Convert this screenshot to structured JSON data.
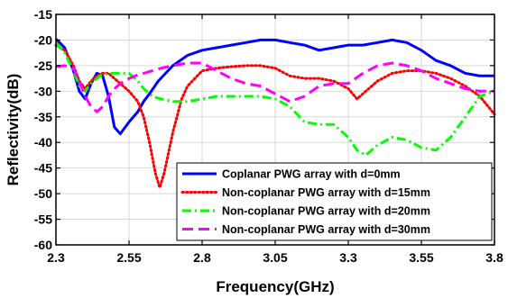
{
  "chart_data": {
    "type": "line",
    "title": "",
    "xlabel": "Frequency(GHz)",
    "ylabel": "Reflectivity(dB)",
    "xlim": [
      2.3,
      3.8
    ],
    "ylim": [
      -60,
      -15
    ],
    "xticks": [
      2.3,
      2.55,
      2.8,
      3.05,
      3.3,
      3.55,
      3.8
    ],
    "xtick_labels": [
      "2.3",
      "2.55",
      "2.8",
      "3.05",
      "3.3",
      "3.55",
      "3.8"
    ],
    "yticks": [
      -60,
      -55,
      -50,
      -45,
      -40,
      -35,
      -30,
      -25,
      -20,
      -15
    ],
    "ytick_labels": [
      "-60",
      "-55",
      "-50",
      "-45",
      "-40",
      "-35",
      "-30",
      "-25",
      "-20",
      "-15"
    ],
    "grid": true,
    "legend_position": "lower-right",
    "series": [
      {
        "name": "Coplanar PWG array with d=0mm",
        "color": "#0000ff",
        "style": "solid",
        "x": [
          2.3,
          2.33,
          2.36,
          2.38,
          2.4,
          2.42,
          2.44,
          2.46,
          2.48,
          2.5,
          2.52,
          2.55,
          2.58,
          2.6,
          2.62,
          2.65,
          2.7,
          2.75,
          2.8,
          2.85,
          2.9,
          2.95,
          3.0,
          3.05,
          3.1,
          3.15,
          3.2,
          3.25,
          3.3,
          3.35,
          3.4,
          3.45,
          3.5,
          3.55,
          3.6,
          3.65,
          3.7,
          3.75,
          3.8
        ],
        "y": [
          -19.8,
          -21.5,
          -26,
          -30,
          -31.5,
          -28.5,
          -26.5,
          -27,
          -31,
          -37,
          -38.3,
          -36,
          -34,
          -32,
          -30.5,
          -28,
          -25,
          -23,
          -22,
          -21.5,
          -21,
          -20.5,
          -20,
          -20,
          -20.5,
          -21,
          -22,
          -21.5,
          -21,
          -21,
          -20.5,
          -20,
          -20.5,
          -22,
          -24,
          -25,
          -26.5,
          -27,
          -27
        ]
      },
      {
        "name": "Non-coplanar PWG array with d=15mm",
        "color": "#ff0000",
        "style": "dotted",
        "x": [
          2.3,
          2.33,
          2.36,
          2.38,
          2.4,
          2.42,
          2.44,
          2.46,
          2.48,
          2.5,
          2.52,
          2.55,
          2.58,
          2.6,
          2.62,
          2.64,
          2.655,
          2.67,
          2.7,
          2.73,
          2.75,
          2.8,
          2.85,
          2.9,
          2.95,
          3.0,
          3.05,
          3.1,
          3.15,
          3.2,
          3.25,
          3.3,
          3.33,
          3.36,
          3.4,
          3.45,
          3.5,
          3.55,
          3.6,
          3.65,
          3.7,
          3.75,
          3.8
        ],
        "y": [
          -21,
          -22,
          -25,
          -28,
          -29.5,
          -28,
          -27,
          -26.5,
          -26.5,
          -27.5,
          -28.5,
          -30,
          -32,
          -35,
          -40,
          -46,
          -48.8,
          -46,
          -38,
          -31.5,
          -29,
          -26,
          -25.5,
          -25.2,
          -25,
          -25,
          -25.5,
          -27,
          -27.5,
          -27.5,
          -28,
          -29.5,
          -31.5,
          -30,
          -28,
          -26.5,
          -26,
          -26,
          -26.5,
          -27.5,
          -29,
          -31,
          -34.5
        ]
      },
      {
        "name": "Non-coplanar PWG array with d=20mm",
        "color": "#00ff00",
        "style": "dashdot",
        "x": [
          2.3,
          2.33,
          2.36,
          2.38,
          2.4,
          2.42,
          2.45,
          2.48,
          2.5,
          2.52,
          2.55,
          2.58,
          2.6,
          2.63,
          2.66,
          2.7,
          2.75,
          2.8,
          2.85,
          2.9,
          2.95,
          3.0,
          3.05,
          3.1,
          3.15,
          3.2,
          3.25,
          3.3,
          3.33,
          3.36,
          3.4,
          3.45,
          3.5,
          3.55,
          3.6,
          3.65,
          3.7,
          3.75,
          3.8
        ],
        "y": [
          -20.5,
          -22.5,
          -26,
          -29,
          -30,
          -28.5,
          -27,
          -26.5,
          -26.5,
          -26.5,
          -26.5,
          -28,
          -29.5,
          -31,
          -31.5,
          -32,
          -32,
          -31.5,
          -31,
          -31,
          -31,
          -31,
          -31.5,
          -33,
          -36,
          -36.5,
          -36.5,
          -39,
          -41.5,
          -42.5,
          -40.5,
          -39,
          -39.5,
          -41,
          -41.5,
          -39,
          -35,
          -31,
          -30
        ]
      },
      {
        "name": "Non-coplanar PWG array with d=30mm",
        "color": "#ff00ff",
        "style": "dashed",
        "x": [
          2.3,
          2.33,
          2.36,
          2.38,
          2.4,
          2.42,
          2.44,
          2.46,
          2.48,
          2.5,
          2.52,
          2.55,
          2.58,
          2.6,
          2.63,
          2.66,
          2.7,
          2.75,
          2.8,
          2.85,
          2.9,
          2.95,
          3.0,
          3.05,
          3.1,
          3.15,
          3.2,
          3.25,
          3.3,
          3.35,
          3.4,
          3.45,
          3.5,
          3.55,
          3.6,
          3.65,
          3.7,
          3.75,
          3.8
        ],
        "y": [
          -25.2,
          -25,
          -25.5,
          -28,
          -31,
          -33,
          -34,
          -33,
          -31,
          -29.5,
          -28.5,
          -27.5,
          -26.8,
          -26.5,
          -26,
          -25.5,
          -25,
          -24.5,
          -24.5,
          -26,
          -27.5,
          -28.5,
          -29,
          -30.5,
          -32,
          -31,
          -29,
          -28.5,
          -28.5,
          -26.5,
          -25,
          -24.5,
          -25,
          -26,
          -27.5,
          -28.5,
          -29.5,
          -30,
          -30
        ]
      }
    ]
  }
}
